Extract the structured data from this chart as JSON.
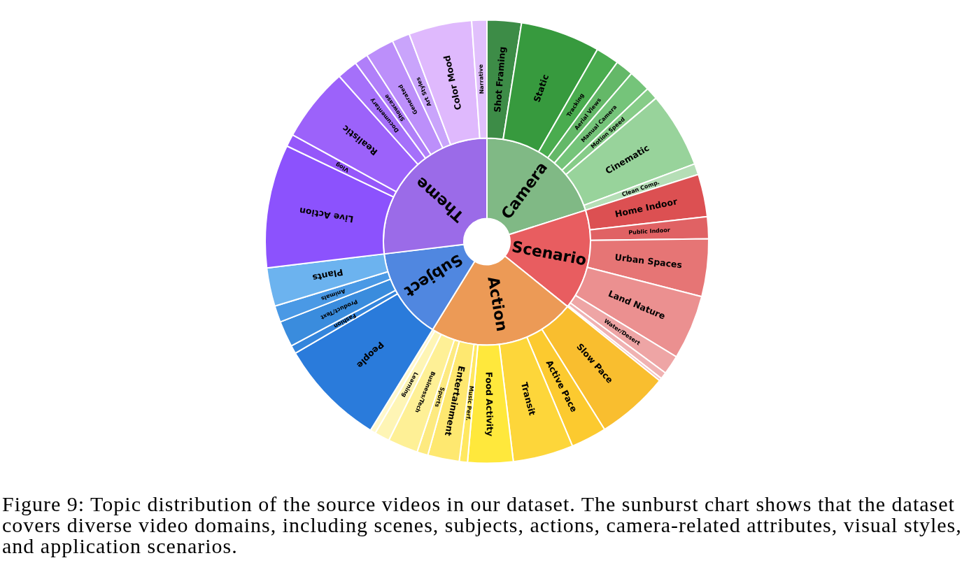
{
  "chart_data": [
    {
      "type": "donut",
      "categories": [
        "Camera",
        "Scenario",
        "Action",
        "Subject",
        "Theme"
      ],
      "values": [
        20.1,
        15.7,
        23.0,
        14.3,
        26.9
      ],
      "colors": [
        "#80b985",
        "#e85d60",
        "#ec9a56",
        "#5087e0",
        "#9b6be8"
      ]
    },
    {
      "type": "donut",
      "annotations": [
        "Figure 9: Topic distribution of the source videos in our dataset. The sunburst chart shows that the dataset covers diverse video domains, including scenes, subjects, actions, camera-related attributes, visual styles, and application scenarios."
      ],
      "categories": [
        "Shot Framing",
        "Static",
        "Tracking",
        "Aerial Views",
        "Manual Camera",
        "Motion Speed",
        "Cinematic",
        "Clean Comp.",
        "Home Indoor",
        "Public Indoor",
        "Urban Spaces",
        "Land Nature",
        "Water/Desert",
        null,
        null,
        "Slow Pace",
        "Active Pace",
        "Transit",
        "Food Activity",
        "Music Perf.",
        "Entertainment",
        "Sports",
        "Business/Tech",
        "Learning",
        null,
        "People",
        "Fashion",
        "Product/Text",
        "Animals",
        "Plants",
        "Live Action",
        "Vlog",
        "Realistic",
        "Documentary",
        "Showcase",
        "Generated",
        "Art Styles",
        "Color Mood",
        "Narrative"
      ],
      "values": [
        2.5,
        5.8,
        1.7,
        1.3,
        1.6,
        0.9,
        5.5,
        0.8,
        3.1,
        1.6,
        4.2,
        4.7,
        1.4,
        0.5,
        0.2,
        5.3,
        2.6,
        4.4,
        3.3,
        0.6,
        2.3,
        0.8,
        2.2,
        1.1,
        0.4,
        7.8,
        0.6,
        1.9,
        1.2,
        2.8,
        9.0,
        0.9,
        5.4,
        1.5,
        1.0,
        2.1,
        1.3,
        4.6,
        1.1
      ],
      "colors": [
        "#3d8c47",
        "#379a3e",
        "#4aac4f",
        "#64b868",
        "#75c47a",
        "#86cc88",
        "#98d39b",
        "#b5deb6",
        "#dc5052",
        "#e06264",
        "#e67575",
        "#eb9090",
        "#eea5a5",
        "#f0b2b2",
        "#f3c0c0",
        "#f9be2f",
        "#fcca2f",
        "#fdd63a",
        "#ffe83c",
        "#ffe860",
        "#fee870",
        "#fdea80",
        "#fef096",
        "#fef5b5",
        "#fff8cc",
        "#2a7bdb",
        "#3485dc",
        "#3a8cdd",
        "#4a99e5",
        "#6cb3ef",
        "#8c52fd",
        "#9557fa",
        "#9c62fa",
        "#a570fa",
        "#b07ff9",
        "#bc8ffa",
        "#c9a4fb",
        "#dfb9fd",
        "#e1c0fc"
      ]
    }
  ]
}
